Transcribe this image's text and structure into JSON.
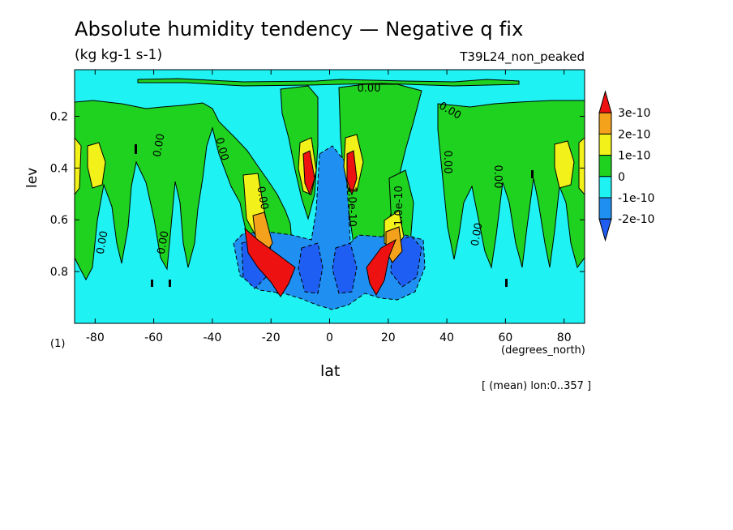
{
  "chart_data": {
    "type": "contour",
    "title": "Absolute humidity tendency — Negative q fix",
    "units": "(kg kg-1 s-1)",
    "run_name": "T39L24_non_peaked",
    "xlabel": "lat",
    "x_units": "(degrees_north)",
    "ylabel": "lev",
    "footnote": "(1)",
    "averaging_note": "[ (mean) lon:0..357 ]",
    "xlim": [
      -87,
      87
    ],
    "ylim": [
      1.0,
      0.0
    ],
    "x_ticks": [
      -80,
      -60,
      -40,
      -20,
      0,
      20,
      40,
      60,
      80
    ],
    "x_tick_labels": [
      "-80",
      "-60",
      "-40",
      "-20",
      "0",
      "20",
      "40",
      "60",
      "80"
    ],
    "y_ticks": [
      0.2,
      0.4,
      0.6,
      0.8
    ],
    "y_tick_labels": [
      "0.2",
      "0.4",
      "0.6",
      "0.8"
    ],
    "colorbar": {
      "levels": [
        "3e-10",
        "2e-10",
        "1e-10",
        "0",
        "-1e-10",
        "-2e-10"
      ],
      "colors": [
        "#ee1111",
        "#f4a21c",
        "#f2f21a",
        "#1fd21f",
        "#1ff2f2",
        "#1f90f2",
        "#1f5ef2"
      ]
    },
    "contour_labels": [
      "0.00",
      "0.00",
      "0.00",
      "0.00",
      "0.00",
      "0.00",
      "0.00",
      "0.00",
      "0.00",
      "0.00",
      "1.0e-10",
      "1.0e-10"
    ],
    "grid": false,
    "legend_position": "right"
  },
  "colors": {
    "neg1": "#1ff2f2",
    "neg2": "#1f90f2",
    "neg3": "#1f5ef2",
    "pos0": "#1fd21f",
    "pos1": "#f2f21a",
    "pos2": "#f4a21c",
    "pos3": "#ee1111"
  }
}
